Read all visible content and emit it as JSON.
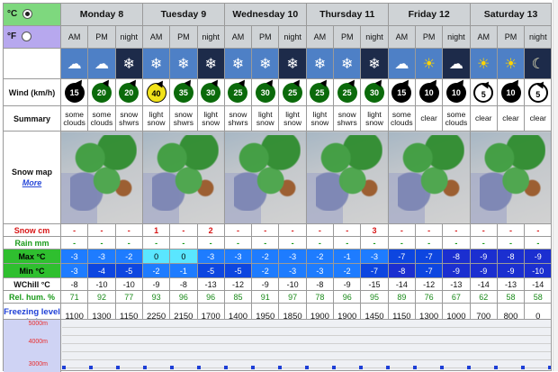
{
  "units": {
    "celsius": "°C",
    "fahrenheit": "°F"
  },
  "days": [
    {
      "name": "Monday 8"
    },
    {
      "name": "Tuesday 9"
    },
    {
      "name": "Wednesday 10"
    },
    {
      "name": "Thursday 11"
    },
    {
      "name": "Friday 12"
    },
    {
      "name": "Saturday 13"
    }
  ],
  "periods": [
    "AM",
    "PM",
    "night",
    "AM",
    "PM",
    "night",
    "AM",
    "PM",
    "night",
    "AM",
    "PM",
    "night",
    "AM",
    "PM",
    "night",
    "AM",
    "PM",
    "night"
  ],
  "labels": {
    "wind": "Wind (km/h)",
    "summary": "Summary",
    "snow_map": "Snow map",
    "more": "More",
    "snow_cm": "Snow cm",
    "rain_mm": "Rain mm",
    "max": "Max °C",
    "min": "Min °C",
    "wchill": "WChill °C",
    "rel_hum": "Rel. hum. %",
    "freezing": "Freezing level (m)"
  },
  "wind": [
    "15",
    "20",
    "20",
    "40",
    "35",
    "30",
    "25",
    "30",
    "25",
    "25",
    "25",
    "30",
    "15",
    "10",
    "10",
    "5",
    "10",
    "5"
  ],
  "summary": [
    "some clouds",
    "some clouds",
    "snow shwrs",
    "light snow",
    "snow shwrs",
    "light snow",
    "snow shwrs",
    "light snow",
    "light snow",
    "light snow",
    "snow shwrs",
    "light snow",
    "some clouds",
    "clear",
    "some clouds",
    "clear",
    "clear",
    "clear"
  ],
  "snow_cm": [
    "-",
    "-",
    "-",
    "1",
    "-",
    "2",
    "-",
    "-",
    "-",
    "-",
    "-",
    "3",
    "-",
    "-",
    "-",
    "-",
    "-",
    "-"
  ],
  "rain_mm": [
    "-",
    "-",
    "-",
    "-",
    "-",
    "-",
    "-",
    "-",
    "-",
    "-",
    "-",
    "-",
    "-",
    "-",
    "-",
    "-",
    "-",
    "-"
  ],
  "max_c": [
    "-3",
    "-3",
    "-2",
    "0",
    "0",
    "-3",
    "-3",
    "-2",
    "-3",
    "-2",
    "-1",
    "-3",
    "-7",
    "-7",
    "-8",
    "-9",
    "-8",
    "-9"
  ],
  "min_c": [
    "-3",
    "-4",
    "-5",
    "-2",
    "-1",
    "-5",
    "-5",
    "-2",
    "-3",
    "-3",
    "-2",
    "-7",
    "-8",
    "-7",
    "-9",
    "-9",
    "-9",
    "-10"
  ],
  "wchill_c": [
    "-8",
    "-10",
    "-10",
    "-9",
    "-8",
    "-13",
    "-12",
    "-9",
    "-10",
    "-8",
    "-9",
    "-15",
    "-14",
    "-12",
    "-13",
    "-14",
    "-13",
    "-14"
  ],
  "rel_hum": [
    "71",
    "92",
    "77",
    "93",
    "96",
    "96",
    "85",
    "91",
    "97",
    "78",
    "96",
    "95",
    "89",
    "76",
    "67",
    "62",
    "58",
    "58"
  ],
  "freezing": [
    "1100",
    "1300",
    "1150",
    "2250",
    "2150",
    "1700",
    "1400",
    "1950",
    "1850",
    "1900",
    "1900",
    "1450",
    "1150",
    "1300",
    "1000",
    "700",
    "800",
    "0"
  ],
  "altitude": {
    "a5000": "5000m",
    "a4000": "4000m",
    "a3000": "3000m"
  }
}
